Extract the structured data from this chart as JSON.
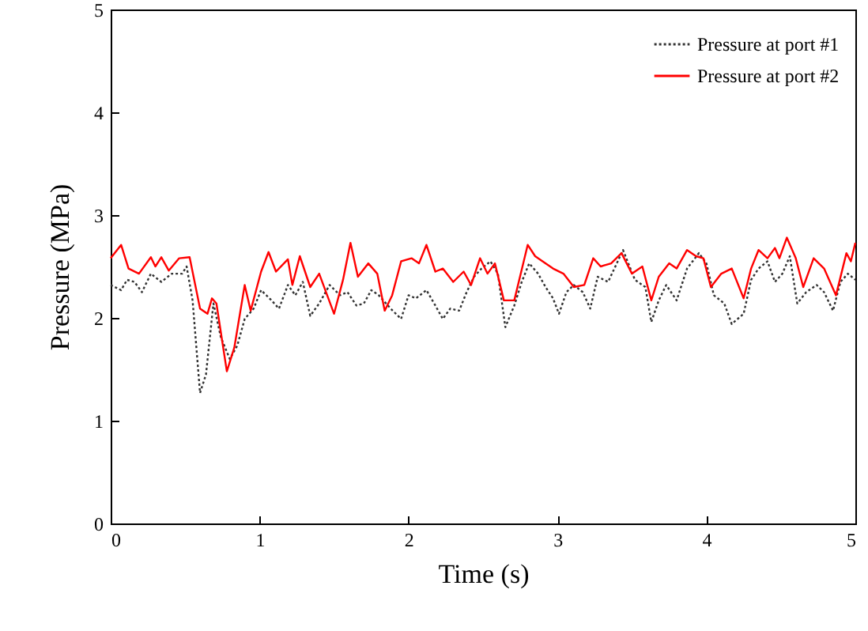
{
  "chart_data": {
    "type": "line",
    "xlabel": "Time (s)",
    "ylabel": "Pressure (MPa)",
    "xlim": [
      0,
      5
    ],
    "ylim": [
      0,
      5
    ],
    "xticks": [
      0,
      1,
      2,
      3,
      4,
      5
    ],
    "yticks": [
      0,
      1,
      2,
      3,
      4,
      5
    ],
    "grid": false,
    "legend": "top right",
    "marker": "none",
    "series": [
      {
        "name": "Pressure at port #1",
        "color": "#333333",
        "line_style": "dotted",
        "x": [
          0,
          0.07,
          0.11,
          0.16,
          0.21,
          0.27,
          0.34,
          0.41,
          0.48,
          0.51,
          0.55,
          0.6,
          0.64,
          0.69,
          0.74,
          0.8,
          0.85,
          0.9,
          0.96,
          1.01,
          1.08,
          1.13,
          1.19,
          1.24,
          1.29,
          1.34,
          1.4,
          1.47,
          1.54,
          1.59,
          1.65,
          1.7,
          1.75,
          1.8,
          1.88,
          1.95,
          2.0,
          2.05,
          2.12,
          2.18,
          2.23,
          2.28,
          2.34,
          2.39,
          2.44,
          2.49,
          2.55,
          2.6,
          2.65,
          2.71,
          2.76,
          2.81,
          2.87,
          2.92,
          2.97,
          3.01,
          3.06,
          3.11,
          3.17,
          3.22,
          3.27,
          3.34,
          3.44,
          3.52,
          3.59,
          3.63,
          3.68,
          3.73,
          3.8,
          3.87,
          3.95,
          4.0,
          4.05,
          4.12,
          4.17,
          4.25,
          4.3,
          4.35,
          4.41,
          4.46,
          4.51,
          4.56,
          4.61,
          4.67,
          4.74,
          4.79,
          4.85,
          4.9,
          4.95,
          5.0
        ],
        "values": [
          2.32,
          2.27,
          2.37,
          2.35,
          2.25,
          2.43,
          2.35,
          2.43,
          2.43,
          2.5,
          2.17,
          1.27,
          1.45,
          2.14,
          1.81,
          1.6,
          1.73,
          1.99,
          2.09,
          2.27,
          2.17,
          2.09,
          2.32,
          2.22,
          2.35,
          2.02,
          2.14,
          2.32,
          2.22,
          2.25,
          2.12,
          2.14,
          2.27,
          2.22,
          2.09,
          1.99,
          2.22,
          2.19,
          2.27,
          2.12,
          1.99,
          2.09,
          2.07,
          2.25,
          2.4,
          2.48,
          2.55,
          2.43,
          1.91,
          2.12,
          2.35,
          2.53,
          2.43,
          2.3,
          2.19,
          2.04,
          2.25,
          2.32,
          2.25,
          2.09,
          2.4,
          2.35,
          2.66,
          2.37,
          2.3,
          1.96,
          2.17,
          2.32,
          2.17,
          2.48,
          2.63,
          2.53,
          2.22,
          2.14,
          1.94,
          2.04,
          2.37,
          2.48,
          2.55,
          2.35,
          2.43,
          2.6,
          2.14,
          2.25,
          2.32,
          2.25,
          2.07,
          2.35,
          2.43,
          2.37
        ]
      },
      {
        "name": "Pressure at port #2",
        "color": "#ff0000",
        "line_style": "solid",
        "x": [
          0,
          0.07,
          0.12,
          0.19,
          0.27,
          0.3,
          0.34,
          0.39,
          0.46,
          0.53,
          0.6,
          0.65,
          0.68,
          0.71,
          0.78,
          0.83,
          0.9,
          0.94,
          1.01,
          1.06,
          1.11,
          1.19,
          1.22,
          1.27,
          1.34,
          1.4,
          1.5,
          1.56,
          1.61,
          1.66,
          1.73,
          1.79,
          1.84,
          1.89,
          1.95,
          2.02,
          2.07,
          2.12,
          2.18,
          2.23,
          2.3,
          2.37,
          2.42,
          2.48,
          2.53,
          2.58,
          2.64,
          2.71,
          2.8,
          2.85,
          2.9,
          2.97,
          3.04,
          3.11,
          3.18,
          3.24,
          3.29,
          3.36,
          3.43,
          3.5,
          3.57,
          3.63,
          3.68,
          3.75,
          3.8,
          3.87,
          3.93,
          3.98,
          4.03,
          4.1,
          4.17,
          4.25,
          4.3,
          4.35,
          4.41,
          4.46,
          4.49,
          4.54,
          4.6,
          4.65,
          4.72,
          4.79,
          4.87,
          4.94,
          4.97,
          5.0
        ],
        "values": [
          2.58,
          2.71,
          2.48,
          2.43,
          2.59,
          2.5,
          2.59,
          2.46,
          2.58,
          2.59,
          2.09,
          2.04,
          2.19,
          2.14,
          1.48,
          1.71,
          2.32,
          2.07,
          2.45,
          2.64,
          2.45,
          2.57,
          2.32,
          2.6,
          2.3,
          2.43,
          2.04,
          2.37,
          2.73,
          2.4,
          2.53,
          2.43,
          2.07,
          2.22,
          2.55,
          2.58,
          2.53,
          2.71,
          2.45,
          2.48,
          2.35,
          2.45,
          2.32,
          2.58,
          2.43,
          2.53,
          2.17,
          2.17,
          2.71,
          2.6,
          2.55,
          2.48,
          2.43,
          2.3,
          2.32,
          2.58,
          2.5,
          2.53,
          2.63,
          2.43,
          2.5,
          2.17,
          2.4,
          2.53,
          2.48,
          2.66,
          2.6,
          2.58,
          2.3,
          2.43,
          2.48,
          2.19,
          2.48,
          2.66,
          2.58,
          2.68,
          2.58,
          2.78,
          2.58,
          2.3,
          2.58,
          2.48,
          2.22,
          2.63,
          2.55,
          2.73
        ]
      }
    ]
  }
}
